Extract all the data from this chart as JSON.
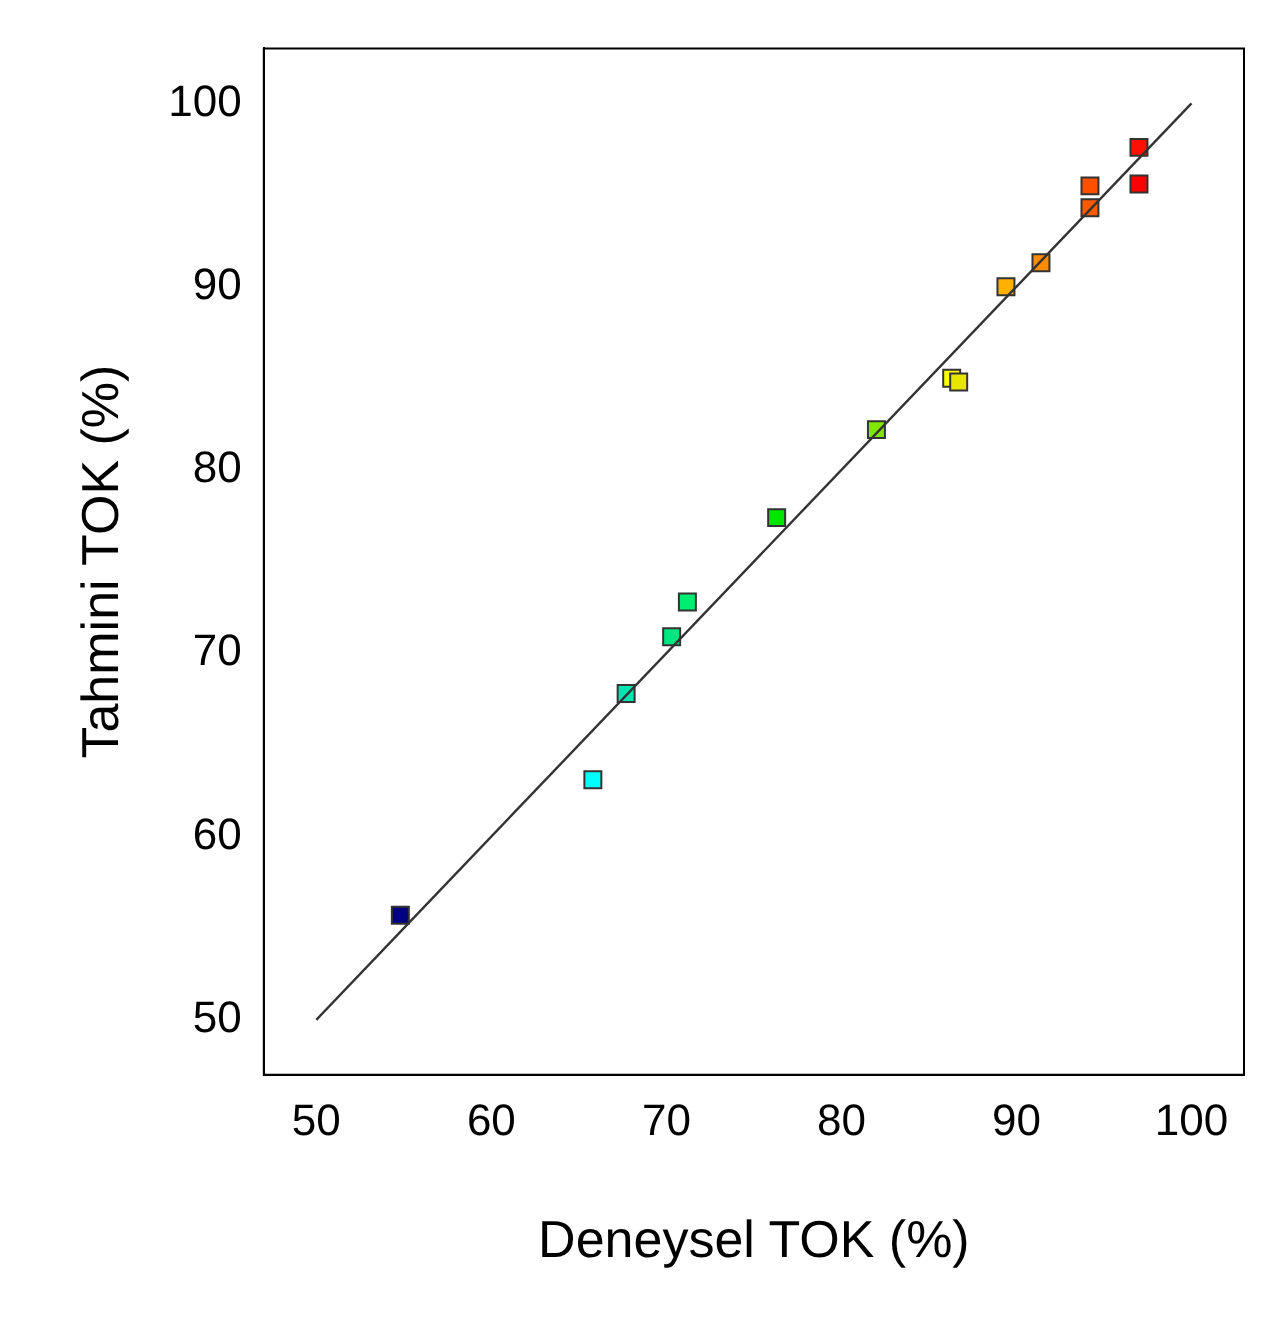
{
  "chart_data": {
    "type": "scatter",
    "xlabel": "Deneysel TOK (%)",
    "ylabel": "Tahmini TOK (%)",
    "xlim": [
      47,
      103
    ],
    "ylim": [
      47,
      103
    ],
    "xticks": [
      50,
      60,
      70,
      80,
      90,
      100
    ],
    "yticks": [
      50,
      60,
      70,
      80,
      90,
      100
    ],
    "grid": false,
    "legend": false,
    "marker": "square",
    "series": [
      {
        "type": "line",
        "color": "#333333",
        "x": [
          50,
          100
        ],
        "values": [
          50,
          100
        ],
        "marker": "none",
        "line_style": "solid"
      },
      {
        "x": [
          54.8,
          65.8,
          67.7,
          70.3,
          71.2,
          76.3,
          82.0,
          86.3,
          86.7,
          89.4,
          91.4,
          94.2,
          94.2,
          97.0,
          97.0
        ],
        "values": [
          55.7,
          63.1,
          67.8,
          70.9,
          72.8,
          77.4,
          82.2,
          85.0,
          84.8,
          90.0,
          91.3,
          95.5,
          94.3,
          97.6,
          95.6
        ],
        "colors": [
          "#000080",
          "#00ffff",
          "#00e6b0",
          "#00e680",
          "#00ee70",
          "#00e600",
          "#80e600",
          "#ffff00",
          "#e6e600",
          "#ffb000",
          "#ff8c00",
          "#ff5000",
          "#ff5a00",
          "#ff1000",
          "#ff0000"
        ]
      }
    ]
  }
}
